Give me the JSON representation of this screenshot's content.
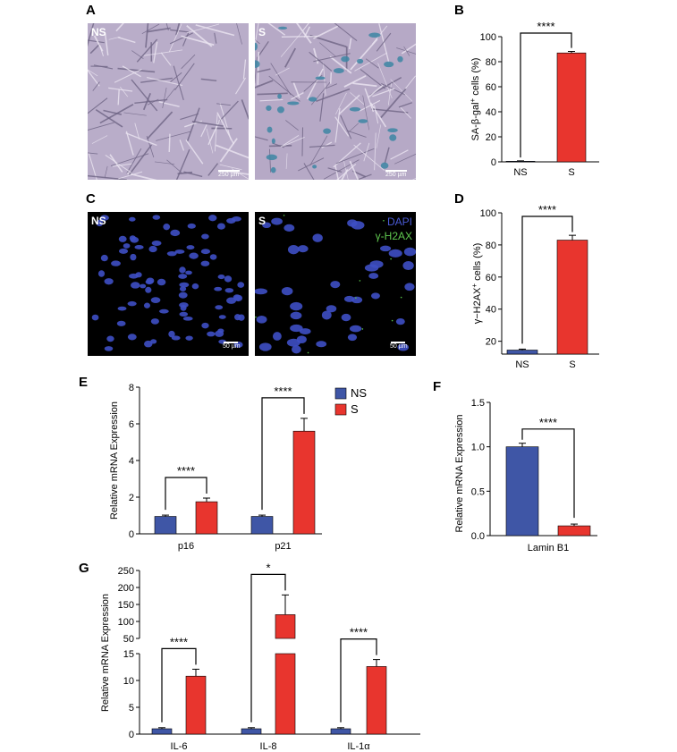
{
  "panels": {
    "a": "A",
    "b": "B",
    "c": "C",
    "d": "D",
    "e": "E",
    "f": "F",
    "g": "G"
  },
  "micrographs": {
    "a_left": {
      "tag": "NS",
      "scale": "250 µm"
    },
    "a_right": {
      "tag": "S",
      "scale": "250 µm"
    },
    "c_left": {
      "tag": "NS",
      "scale": "50 µm"
    },
    "c_right": {
      "tag": "S",
      "scale": "50 µm",
      "stain_1": "DAPI",
      "stain_2": "γ-H2AX"
    }
  },
  "colors": {
    "ns": "#3f56a6",
    "s": "#e8352e",
    "dapi": "#3e4fc4",
    "h2ax": "#59c34a",
    "sa_gal": "#3d86a3",
    "phase_bg": "#b6a9c9"
  },
  "legend": {
    "ns": "NS",
    "s": "S"
  },
  "chart_data": [
    {
      "panel": "B",
      "type": "bar",
      "categories": [
        "NS",
        "S"
      ],
      "values": [
        0.5,
        87
      ],
      "errors": [
        0.3,
        1.2
      ],
      "ylabel_main": "SA-β-gal",
      "ylabel_sup": "+",
      "ylabel_rest": " cells (%)",
      "ylim": [
        0,
        100
      ],
      "yticks": [
        "0",
        "20",
        "40",
        "60",
        "80",
        "100"
      ],
      "significance": [
        "****"
      ]
    },
    {
      "panel": "D",
      "type": "bar",
      "categories": [
        "NS",
        "S"
      ],
      "values": [
        14.5,
        83
      ],
      "errors": [
        0.6,
        3
      ],
      "ylabel_main": "γ−H2AX",
      "ylabel_sup": "+",
      "ylabel_rest": " cells (%)",
      "ylim": [
        12,
        100
      ],
      "yticks": [
        "20",
        "40",
        "60",
        "80",
        "100"
      ],
      "significance": [
        "****"
      ]
    },
    {
      "panel": "E",
      "type": "bar",
      "categories": [
        "p16",
        "p21"
      ],
      "series": [
        {
          "name": "NS",
          "values": [
            0.95,
            0.95
          ],
          "errors": [
            0.07,
            0.07
          ]
        },
        {
          "name": "S",
          "values": [
            1.75,
            5.6
          ],
          "errors": [
            0.2,
            0.7
          ]
        }
      ],
      "ylabel": "Relative mRNA Expression",
      "ylim": [
        0,
        8
      ],
      "yticks": [
        "0",
        "2",
        "4",
        "6",
        "8"
      ],
      "significance": [
        "****",
        "****"
      ]
    },
    {
      "panel": "F",
      "type": "bar",
      "categories": [
        "Lamin B1"
      ],
      "series": [
        {
          "name": "NS",
          "values": [
            1.0
          ],
          "errors": [
            0.04
          ]
        },
        {
          "name": "S",
          "values": [
            0.11
          ],
          "errors": [
            0.02
          ]
        }
      ],
      "ylabel": "Relative mRNA Expression",
      "ylim": [
        0,
        1.5
      ],
      "yticks": [
        "0.0",
        "0.5",
        "1.0",
        "1.5"
      ],
      "significance": [
        "****"
      ]
    },
    {
      "panel": "G",
      "type": "bar",
      "broken_axis": true,
      "categories": [
        "IL-6",
        "IL-8",
        "IL-1α"
      ],
      "series": [
        {
          "name": "NS",
          "values": [
            1.0,
            1.0,
            1.0
          ],
          "errors": [
            0.2,
            0.2,
            0.2
          ]
        },
        {
          "name": "S",
          "values": [
            10.8,
            120,
            12.6
          ],
          "errors": [
            1.3,
            58,
            1.3
          ]
        }
      ],
      "ylabel": "Relative mRNA Expression",
      "ylim_lower": [
        0,
        15
      ],
      "yticks_lower": [
        "0",
        "5",
        "10",
        "15"
      ],
      "ylim_upper": [
        50,
        250
      ],
      "yticks_upper": [
        "50",
        "100",
        "150",
        "200",
        "250"
      ],
      "significance": [
        "****",
        "*",
        "****"
      ]
    }
  ]
}
